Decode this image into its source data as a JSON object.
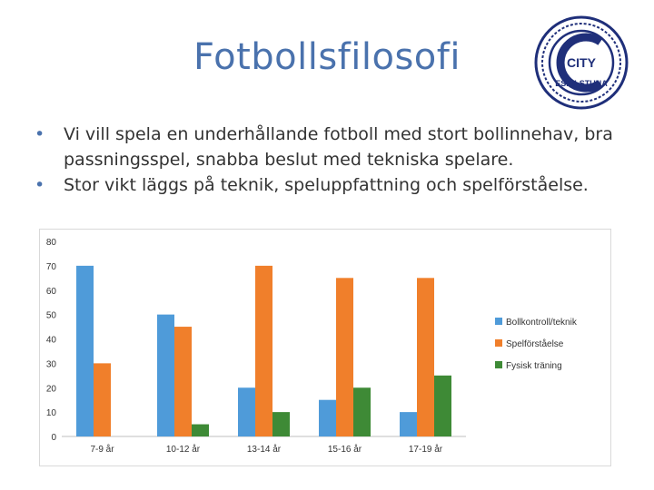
{
  "slide": {
    "title": "Fotbollsfilosofi",
    "bullets": [
      "Vi vill spela en underhållande fotboll med stort bollinnehav, bra passningsspel, snabba beslut med tekniska spelare.",
      "Stor vikt läggs på teknik, speluppfattning och spelförståelse."
    ],
    "logo": {
      "text_top": "CITY",
      "text_bottom": "ESKILSTUNA",
      "letter": "C",
      "color": "#1f2f7a"
    }
  },
  "chart_data": {
    "type": "bar",
    "categories": [
      "7-9 år",
      "10-12 år",
      "13-14 år",
      "15-16 år",
      "17-19 år"
    ],
    "series": [
      {
        "name": "Bollkontroll/teknik",
        "color": "#4f9bd9",
        "values": [
          70,
          50,
          20,
          15,
          10
        ]
      },
      {
        "name": "Spelförståelse",
        "color": "#f07f2b",
        "values": [
          30,
          45,
          70,
          65,
          65
        ]
      },
      {
        "name": "Fysisk träning",
        "color": "#3e8a36",
        "values": [
          0,
          5,
          10,
          20,
          25
        ]
      }
    ],
    "yticks": [
      "0",
      "10",
      "20",
      "30",
      "40",
      "50",
      "60",
      "70",
      "80"
    ],
    "ylim": [
      0,
      80
    ],
    "legend": "right",
    "grid": false
  }
}
